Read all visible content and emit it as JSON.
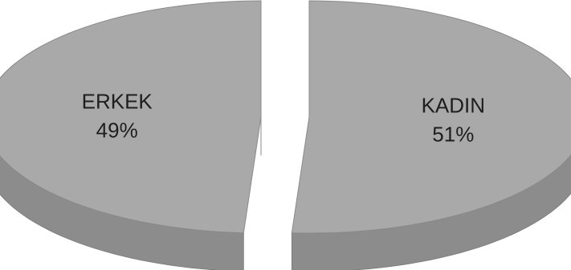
{
  "chart_data": {
    "type": "pie",
    "title": "",
    "slices": [
      {
        "label": "ERKEK",
        "value": 49,
        "value_label": "49%",
        "color": "#a9a9a9",
        "side_color": "#8c8c8c"
      },
      {
        "label": "KADIN",
        "value": 51,
        "value_label": "51%",
        "color": "#a9a9a9",
        "side_color": "#8c8c8c"
      }
    ],
    "style": "3d-exploded",
    "legend": "none"
  }
}
